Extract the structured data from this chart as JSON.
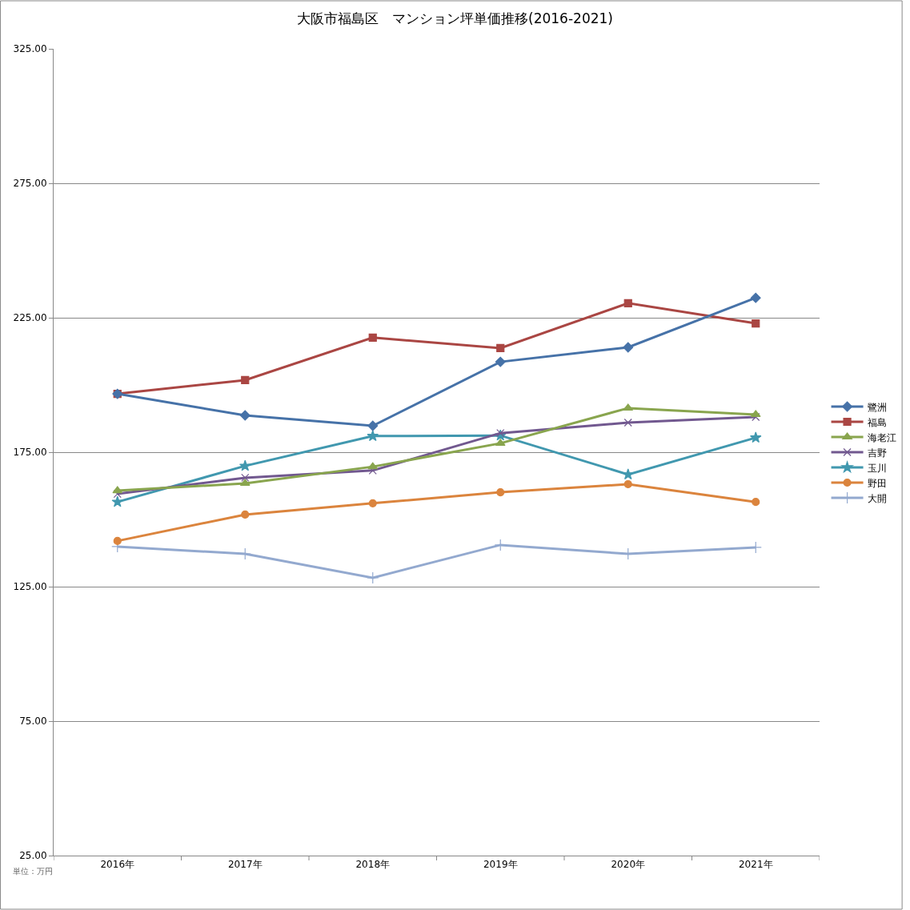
{
  "chart_data": {
    "type": "line",
    "title": "大阪市福島区　マンション坪単価推移(2016-2021)",
    "categories": [
      "2016年",
      "2017年",
      "2018年",
      "2019年",
      "2020年",
      "2021年"
    ],
    "series": [
      {
        "name": "鷺洲",
        "color": "#4672a8",
        "marker": "diamond",
        "values": [
          196.7,
          188.7,
          184.8,
          208.6,
          214.0,
          232.4
        ]
      },
      {
        "name": "福島",
        "color": "#aa4643",
        "marker": "square",
        "values": [
          196.7,
          201.8,
          217.6,
          213.7,
          230.4,
          222.9
        ]
      },
      {
        "name": "海老江",
        "color": "#89a54e",
        "marker": "triangle",
        "values": [
          160.7,
          163.4,
          169.6,
          178.3,
          191.4,
          189.0
        ]
      },
      {
        "name": "吉野",
        "color": "#71588f",
        "marker": "cross",
        "values": [
          159.5,
          165.5,
          168.2,
          182.1,
          186.0,
          188.1
        ]
      },
      {
        "name": "玉川",
        "color": "#4198af",
        "marker": "star",
        "values": [
          156.5,
          169.9,
          181.0,
          181.2,
          166.7,
          180.4
        ]
      },
      {
        "name": "野田",
        "color": "#db843d",
        "marker": "circle",
        "values": [
          142.0,
          151.8,
          156.0,
          160.1,
          163.1,
          156.5
        ]
      },
      {
        "name": "大開",
        "color": "#93a9cf",
        "marker": "plus",
        "values": [
          139.9,
          137.2,
          128.3,
          140.5,
          137.2,
          139.6
        ]
      }
    ],
    "ylim": [
      25,
      325
    ],
    "yticks": [
      {
        "value": 25,
        "label": "25.00"
      },
      {
        "value": 75,
        "label": "75.00"
      },
      {
        "value": 125,
        "label": "125.00"
      },
      {
        "value": 175,
        "label": "175.00"
      },
      {
        "value": 225,
        "label": "225.00"
      },
      {
        "value": 275,
        "label": "275.00"
      },
      {
        "value": 325,
        "label": "325.00"
      }
    ],
    "grid": "y",
    "legend": "right",
    "line_style": "solid",
    "annotations": [
      "単位：万円"
    ]
  }
}
